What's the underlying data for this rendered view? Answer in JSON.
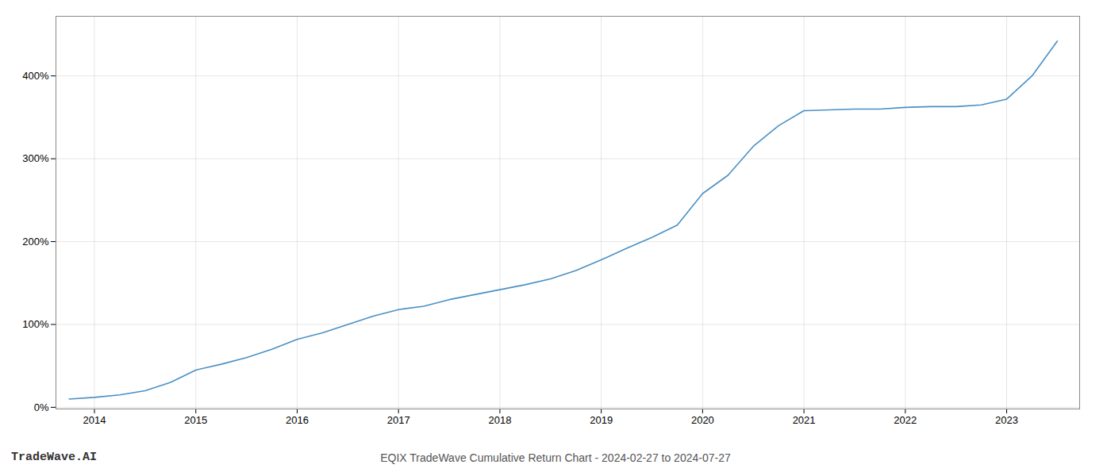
{
  "chart_data": {
    "type": "line",
    "title": "EQIX TradeWave Cumulative Return Chart - 2024-02-27 to 2024-07-27",
    "annotations": [
      "TradeWave.AI"
    ],
    "x": [
      2013.75,
      2014.0,
      2014.25,
      2014.5,
      2014.75,
      2015.0,
      2015.25,
      2015.5,
      2015.75,
      2016.0,
      2016.25,
      2016.5,
      2016.75,
      2017.0,
      2017.25,
      2017.5,
      2017.75,
      2018.0,
      2018.25,
      2018.5,
      2018.75,
      2019.0,
      2019.25,
      2019.5,
      2019.75,
      2020.0,
      2020.25,
      2020.5,
      2020.75,
      2021.0,
      2021.25,
      2021.5,
      2021.75,
      2022.0,
      2022.25,
      2022.5,
      2022.75,
      2023.0,
      2023.25,
      2023.5
    ],
    "values": [
      0.1,
      0.12,
      0.15,
      0.2,
      0.3,
      0.45,
      0.52,
      0.6,
      0.7,
      0.82,
      0.9,
      1.0,
      1.1,
      1.18,
      1.22,
      1.3,
      1.36,
      1.42,
      1.48,
      1.55,
      1.65,
      1.78,
      1.92,
      2.05,
      2.2,
      2.58,
      2.8,
      3.15,
      3.4,
      3.58,
      3.59,
      3.6,
      3.6,
      3.62,
      3.63,
      3.63,
      3.65,
      3.72,
      4.0,
      4.42
    ],
    "color": "#4a90c4",
    "xlim": [
      2013.62,
      2023.72
    ],
    "xticks": [
      2014,
      2015,
      2016,
      2017,
      2018,
      2019,
      2020,
      2021,
      2022,
      2023
    ],
    "ylim": [
      -0.02,
      4.72
    ],
    "yticks": [
      {
        "value": 0,
        "label": "0%"
      },
      {
        "value": 1,
        "label": "100%"
      },
      {
        "value": 2,
        "label": "200%"
      },
      {
        "value": 3,
        "label": "300%"
      },
      {
        "value": 4,
        "label": "400%"
      }
    ],
    "grid": true
  }
}
